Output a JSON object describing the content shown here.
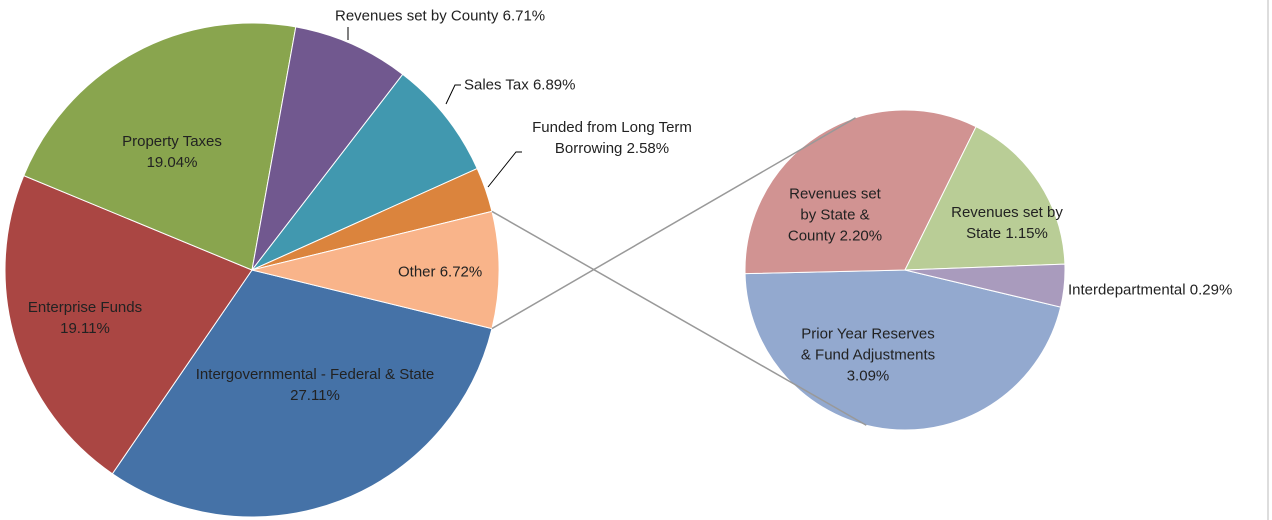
{
  "chart_data": {
    "type": "pie_of_pie",
    "categories": [
      "Intergovernmental - Federal & State",
      "Enterprise Funds",
      "Property Taxes",
      "Revenues set by County",
      "Sales Tax",
      "Funded from Long Term Borrowing",
      "Other"
    ],
    "values": [
      27.11,
      19.11,
      19.04,
      6.71,
      6.89,
      2.58,
      6.72
    ],
    "value_labels": [
      "27.11%",
      "19.11%",
      "19.04%",
      "6.71%",
      "6.89%",
      "2.58%",
      "6.72%"
    ],
    "colors": [
      "#4572a7",
      "#aa4643",
      "#89a54e",
      "#71588f",
      "#4198af",
      "#db843d",
      "#f9b48a"
    ],
    "secondary": {
      "categories": [
        "Prior Year Reserves & Fund Adjustments",
        "Revenues set by State & County",
        "Revenues set by State",
        "Interdepartmental"
      ],
      "values": [
        3.09,
        2.2,
        1.15,
        0.29
      ],
      "value_labels": [
        "3.09%",
        "2.20%",
        "1.15%",
        "0.29%"
      ],
      "colors": [
        "#93a9cf",
        "#d19392",
        "#b9cd96",
        "#a99bbd"
      ]
    }
  }
}
